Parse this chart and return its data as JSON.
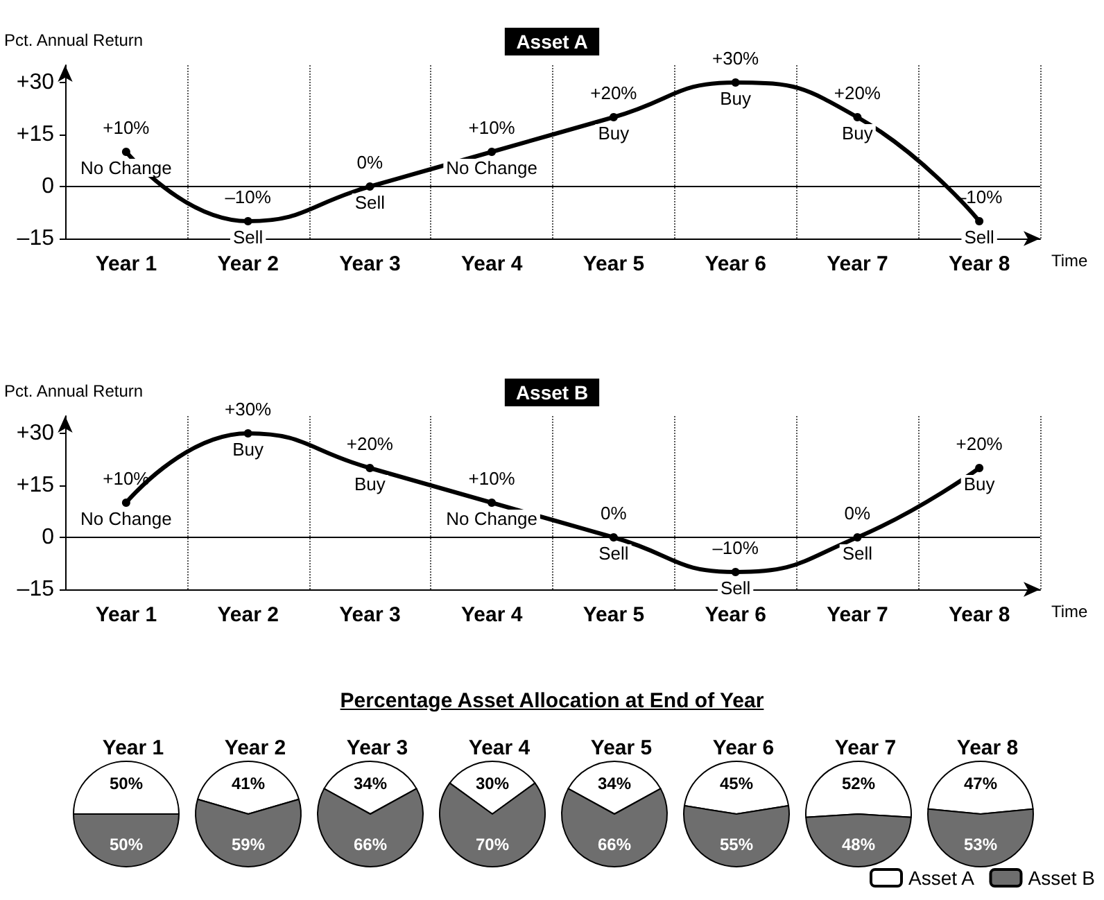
{
  "chart_data": [
    {
      "type": "line",
      "title": "Asset A",
      "xlabel": "Time",
      "ylabel": "Pct. Annual Return",
      "categories": [
        "Year 1",
        "Year 2",
        "Year 3",
        "Year 4",
        "Year 5",
        "Year 6",
        "Year 7",
        "Year 8"
      ],
      "values": [
        10,
        -10,
        0,
        10,
        20,
        30,
        20,
        -10
      ],
      "color": "#000000",
      "value_labels": [
        "+10%",
        "–10%",
        "0%",
        "+10%",
        "+20%",
        "+30%",
        "+20%",
        "–10%"
      ],
      "ylim": [
        -15,
        35
      ],
      "yticks": [
        {
          "value": -15,
          "label": "–15"
        },
        0,
        {
          "value": 15,
          "label": "+15"
        },
        {
          "value": 30,
          "label": "+30"
        }
      ],
      "grid": "x",
      "marker": "circle",
      "ref_lines": [
        {
          "axis": "y",
          "value": 0
        }
      ],
      "annotations": [
        {
          "text": "No Change",
          "x": "Year 1",
          "y": 10
        },
        {
          "text": "Sell",
          "x": "Year 2",
          "y": -10
        },
        {
          "text": "Sell",
          "x": "Year 3",
          "y": 0
        },
        {
          "text": "No Change",
          "x": "Year 4",
          "y": 10
        },
        {
          "text": "Buy",
          "x": "Year 5",
          "y": 20
        },
        {
          "text": "Buy",
          "x": "Year 6",
          "y": 30
        },
        {
          "text": "Buy",
          "x": "Year 7",
          "y": 20
        },
        {
          "text": "Sell",
          "x": "Year 8",
          "y": -10
        }
      ]
    },
    {
      "type": "line",
      "title": "Asset B",
      "xlabel": "Time",
      "ylabel": "Pct. Annual Return",
      "categories": [
        "Year 1",
        "Year 2",
        "Year 3",
        "Year 4",
        "Year 5",
        "Year 6",
        "Year 7",
        "Year 8"
      ],
      "values": [
        10,
        30,
        20,
        10,
        0,
        -10,
        0,
        20
      ],
      "color": "#000000",
      "value_labels": [
        "+10%",
        "+30%",
        "+20%",
        "+10%",
        "0%",
        "–10%",
        "0%",
        "+20%"
      ],
      "ylim": [
        -15,
        35
      ],
      "yticks": [
        {
          "value": -15,
          "label": "–15"
        },
        0,
        {
          "value": 15,
          "label": "+15"
        },
        {
          "value": 30,
          "label": "+30"
        }
      ],
      "grid": "x",
      "marker": "circle",
      "ref_lines": [
        {
          "axis": "y",
          "value": 0
        }
      ],
      "annotations": [
        {
          "text": "No Change",
          "x": "Year 1",
          "y": 10
        },
        {
          "text": "Buy",
          "x": "Year 2",
          "y": 30
        },
        {
          "text": "Buy",
          "x": "Year 3",
          "y": 20
        },
        {
          "text": "No Change",
          "x": "Year 4",
          "y": 10
        },
        {
          "text": "Sell",
          "x": "Year 5",
          "y": 0
        },
        {
          "text": "Sell",
          "x": "Year 6",
          "y": -10
        },
        {
          "text": "Sell",
          "x": "Year 7",
          "y": 0
        },
        {
          "text": "Buy",
          "x": "Year 8",
          "y": 20
        }
      ]
    },
    {
      "type": "other",
      "title": "Percentage Asset Allocation at End of Year"
    },
    {
      "type": "pie",
      "title": "Year 1",
      "categories": [
        null,
        null
      ],
      "values": [
        50,
        50
      ],
      "colors": [
        "#ffffff",
        "#6e6e6e"
      ],
      "value_labels": [
        "50%",
        "50%"
      ]
    },
    {
      "type": "pie",
      "title": "Year 2",
      "categories": [
        null,
        null
      ],
      "values": [
        41,
        59
      ],
      "colors": [
        "#ffffff",
        "#6e6e6e"
      ],
      "value_labels": [
        "41%",
        "59%"
      ]
    },
    {
      "type": "pie",
      "title": "Year 3",
      "categories": [
        null,
        null
      ],
      "values": [
        34,
        66
      ],
      "colors": [
        "#ffffff",
        "#6e6e6e"
      ],
      "value_labels": [
        "34%",
        "66%"
      ]
    },
    {
      "type": "pie",
      "title": "Year 4",
      "categories": [
        null,
        null
      ],
      "values": [
        30,
        70
      ],
      "colors": [
        "#ffffff",
        "#6e6e6e"
      ],
      "value_labels": [
        "30%",
        "70%"
      ]
    },
    {
      "type": "pie",
      "title": "Year 5",
      "categories": [
        null,
        null
      ],
      "values": [
        34,
        66
      ],
      "colors": [
        "#ffffff",
        "#6e6e6e"
      ],
      "value_labels": [
        "34%",
        "66%"
      ]
    },
    {
      "type": "pie",
      "title": "Year 6",
      "categories": [
        null,
        null
      ],
      "values": [
        45,
        55
      ],
      "colors": [
        "#ffffff",
        "#6e6e6e"
      ],
      "value_labels": [
        "45%",
        "55%"
      ]
    },
    {
      "type": "pie",
      "title": "Year 7",
      "categories": [
        null,
        null
      ],
      "values": [
        52,
        48
      ],
      "colors": [
        "#ffffff",
        "#6e6e6e"
      ],
      "value_labels": [
        "52%",
        "48%"
      ]
    },
    {
      "type": "pie",
      "title": "Year 8",
      "categories": [
        "Asset A",
        "Asset B"
      ],
      "values": [
        47,
        53
      ],
      "colors": [
        "#ffffff",
        "#6e6e6e"
      ],
      "value_labels": [
        "47%",
        "53%"
      ],
      "legend": "bottom"
    }
  ]
}
